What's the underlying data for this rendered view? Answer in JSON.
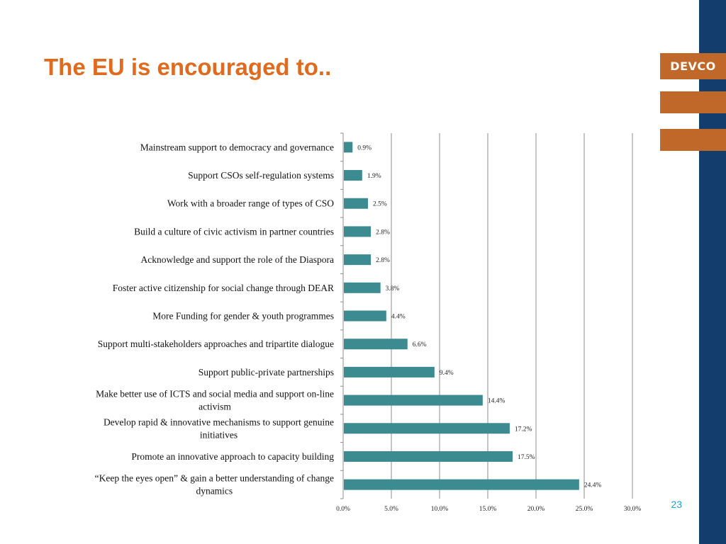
{
  "slide": {
    "title": "The EU is encouraged to..",
    "brand": "DEVCO",
    "page_number": "23"
  },
  "colors": {
    "title": "#e06a1e",
    "bar": "#3c8b91",
    "navy": "#123d6d",
    "orange": "#c0672a",
    "page_number": "#1f9fd8"
  },
  "chart_data": {
    "type": "bar",
    "orientation": "horizontal",
    "categories": [
      [
        "Mainstream support to democracy and governance"
      ],
      [
        "Support CSOs self-regulation systems"
      ],
      [
        "Work with a broader range of types of CSO"
      ],
      [
        "Build a culture of civic activism in partner countries"
      ],
      [
        "Acknowledge and support the role of the Diaspora"
      ],
      [
        "Foster active citizenship for social change through DEAR"
      ],
      [
        "More Funding for gender & youth programmes"
      ],
      [
        "Support multi-stakeholders approaches and tripartite dialogue"
      ],
      [
        "Support public-private partnerships"
      ],
      [
        "Make better use of ICTS and social media and support on-line",
        "activism"
      ],
      [
        "Develop rapid & innovative mechanisms to support genuine",
        "initiatives"
      ],
      [
        "Promote an innovative approach to capacity building"
      ],
      [
        "“Keep the eyes open” & gain a better understanding of change",
        "dynamics"
      ]
    ],
    "values": [
      0.9,
      1.9,
      2.5,
      2.8,
      2.8,
      3.8,
      4.4,
      6.6,
      9.4,
      14.4,
      17.2,
      17.5,
      24.4
    ],
    "value_labels": [
      "0.9%",
      "1.9%",
      "2.5%",
      "2.8%",
      "2.8%",
      "3.8%",
      "4.4%",
      "6.6%",
      "9.4%",
      "14.4%",
      "17.2%",
      "17.5%",
      "24.4%"
    ],
    "x_ticks": [
      0,
      5,
      10,
      15,
      20,
      25,
      30
    ],
    "x_tick_labels": [
      "0.0%",
      "5.0%",
      "10.0%",
      "15.0%",
      "20.0%",
      "25.0%",
      "30.0%"
    ],
    "xlim": [
      0,
      30
    ],
    "grid": true,
    "legend": "none"
  }
}
